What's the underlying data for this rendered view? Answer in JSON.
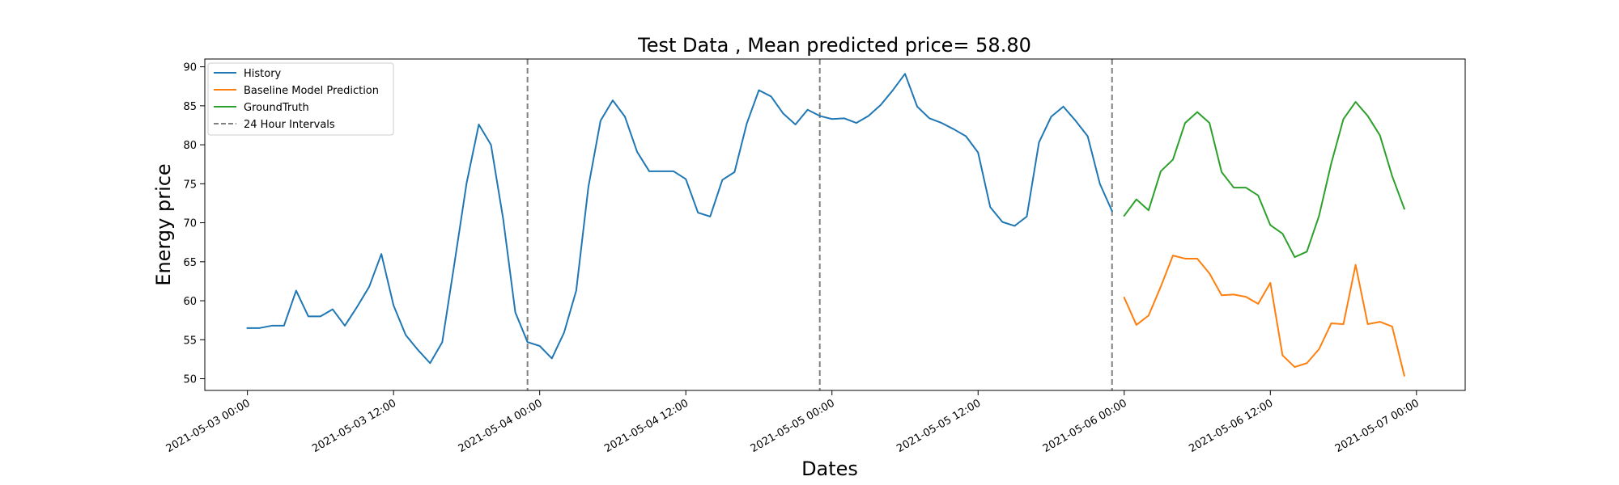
{
  "chart_data": {
    "type": "line",
    "title": "Test Data , Mean predicted price= 58.80",
    "xlabel": "Dates",
    "ylabel": "Energy price",
    "x_range": [
      "2021-05-02 20:30",
      "2021-05-07 04:00"
    ],
    "ylim": [
      48.5,
      91.0
    ],
    "yticks": [
      50,
      55,
      60,
      65,
      70,
      75,
      80,
      85,
      90
    ],
    "xticks": [
      {
        "value": "2021-05-03 00:00",
        "label": "2021-05-03 00:00"
      },
      {
        "value": "2021-05-03 12:00",
        "label": "2021-05-03 12:00"
      },
      {
        "value": "2021-05-04 00:00",
        "label": "2021-05-04 00:00"
      },
      {
        "value": "2021-05-04 12:00",
        "label": "2021-05-04 12:00"
      },
      {
        "value": "2021-05-05 00:00",
        "label": "2021-05-05 00:00"
      },
      {
        "value": "2021-05-05 12:00",
        "label": "2021-05-05 12:00"
      },
      {
        "value": "2021-05-06 00:00",
        "label": "2021-05-06 00:00"
      },
      {
        "value": "2021-05-06 12:00",
        "label": "2021-05-06 12:00"
      },
      {
        "value": "2021-05-07 00:00",
        "label": "2021-05-07 00:00"
      }
    ],
    "grid": false,
    "legend_position": "upper-left",
    "series": [
      {
        "name": "History",
        "color": "#1f77b4",
        "x": [
          "2021-05-03 00:00",
          "2021-05-03 01:00",
          "2021-05-03 02:00",
          "2021-05-03 03:00",
          "2021-05-03 04:00",
          "2021-05-03 05:00",
          "2021-05-03 06:00",
          "2021-05-03 07:00",
          "2021-05-03 08:00",
          "2021-05-03 09:00",
          "2021-05-03 10:00",
          "2021-05-03 11:00",
          "2021-05-03 12:00",
          "2021-05-03 13:00",
          "2021-05-03 14:00",
          "2021-05-03 15:00",
          "2021-05-03 16:00",
          "2021-05-03 17:00",
          "2021-05-03 18:00",
          "2021-05-03 19:00",
          "2021-05-03 20:00",
          "2021-05-03 21:00",
          "2021-05-03 22:00",
          "2021-05-03 23:00",
          "2021-05-04 00:00",
          "2021-05-04 01:00",
          "2021-05-04 02:00",
          "2021-05-04 03:00",
          "2021-05-04 04:00",
          "2021-05-04 05:00",
          "2021-05-04 06:00",
          "2021-05-04 07:00",
          "2021-05-04 08:00",
          "2021-05-04 09:00",
          "2021-05-04 10:00",
          "2021-05-04 11:00",
          "2021-05-04 12:00",
          "2021-05-04 13:00",
          "2021-05-04 14:00",
          "2021-05-04 15:00",
          "2021-05-04 16:00",
          "2021-05-04 17:00",
          "2021-05-04 18:00",
          "2021-05-04 19:00",
          "2021-05-04 20:00",
          "2021-05-04 21:00",
          "2021-05-04 22:00",
          "2021-05-04 23:00",
          "2021-05-05 00:00",
          "2021-05-05 01:00",
          "2021-05-05 02:00",
          "2021-05-05 03:00",
          "2021-05-05 04:00",
          "2021-05-05 05:00",
          "2021-05-05 06:00",
          "2021-05-05 07:00",
          "2021-05-05 08:00",
          "2021-05-05 09:00",
          "2021-05-05 10:00",
          "2021-05-05 11:00",
          "2021-05-05 12:00",
          "2021-05-05 13:00",
          "2021-05-05 14:00",
          "2021-05-05 15:00",
          "2021-05-05 16:00",
          "2021-05-05 17:00",
          "2021-05-05 18:00",
          "2021-05-05 19:00",
          "2021-05-05 20:00",
          "2021-05-05 21:00",
          "2021-05-05 22:00",
          "2021-05-05 23:00"
        ],
        "values": [
          56.5,
          56.5,
          56.8,
          56.8,
          61.3,
          58.0,
          58.0,
          58.9,
          56.8,
          59.2,
          61.8,
          66.0,
          59.4,
          55.6,
          53.7,
          52.0,
          54.7,
          64.8,
          75.1,
          82.6,
          80.0,
          70.5,
          58.5,
          54.7,
          54.2,
          52.6,
          55.9,
          61.3,
          74.6,
          83.1,
          85.7,
          83.6,
          79.1,
          76.6,
          76.6,
          76.6,
          75.6,
          71.3,
          70.8,
          75.5,
          76.5,
          82.7,
          87.0,
          86.2,
          84.0,
          82.6,
          84.5,
          83.7,
          83.3,
          83.4,
          82.8,
          83.7,
          85.1,
          87.0,
          89.1,
          84.9,
          83.4,
          82.8,
          82.0,
          81.1,
          79.0,
          72.0,
          70.1,
          69.6,
          70.8,
          80.3,
          83.6,
          84.9,
          83.1,
          81.1,
          75.0,
          71.5
        ]
      },
      {
        "name": "Baseline Model Prediction",
        "color": "#ff7f0e",
        "x": [
          "2021-05-06 00:00",
          "2021-05-06 01:00",
          "2021-05-06 02:00",
          "2021-05-06 03:00",
          "2021-05-06 04:00",
          "2021-05-06 05:00",
          "2021-05-06 06:00",
          "2021-05-06 07:00",
          "2021-05-06 08:00",
          "2021-05-06 09:00",
          "2021-05-06 10:00",
          "2021-05-06 11:00",
          "2021-05-06 12:00",
          "2021-05-06 13:00",
          "2021-05-06 14:00",
          "2021-05-06 15:00",
          "2021-05-06 16:00",
          "2021-05-06 17:00",
          "2021-05-06 18:00",
          "2021-05-06 19:00",
          "2021-05-06 20:00",
          "2021-05-06 21:00",
          "2021-05-06 22:00",
          "2021-05-06 23:00"
        ],
        "values": [
          60.4,
          56.9,
          58.1,
          61.8,
          65.8,
          65.4,
          65.4,
          63.5,
          60.7,
          60.8,
          60.5,
          59.6,
          62.3,
          53.0,
          51.5,
          52.0,
          53.8,
          57.1,
          57.0,
          64.6,
          57.0,
          57.3,
          56.7,
          50.4
        ]
      },
      {
        "name": "GroundTruth",
        "color": "#2ca02c",
        "x": [
          "2021-05-06 00:00",
          "2021-05-06 01:00",
          "2021-05-06 02:00",
          "2021-05-06 03:00",
          "2021-05-06 04:00",
          "2021-05-06 05:00",
          "2021-05-06 06:00",
          "2021-05-06 07:00",
          "2021-05-06 08:00",
          "2021-05-06 09:00",
          "2021-05-06 10:00",
          "2021-05-06 11:00",
          "2021-05-06 12:00",
          "2021-05-06 13:00",
          "2021-05-06 14:00",
          "2021-05-06 15:00",
          "2021-05-06 16:00",
          "2021-05-06 17:00",
          "2021-05-06 18:00",
          "2021-05-06 19:00",
          "2021-05-06 20:00",
          "2021-05-06 21:00",
          "2021-05-06 22:00",
          "2021-05-06 23:00"
        ],
        "values": [
          70.9,
          73.0,
          71.6,
          76.6,
          78.1,
          82.8,
          84.2,
          82.8,
          76.5,
          74.5,
          74.5,
          73.5,
          69.7,
          68.6,
          65.6,
          66.3,
          70.9,
          77.6,
          83.3,
          85.5,
          83.7,
          81.2,
          76.0,
          71.8
        ]
      }
    ],
    "vlines": {
      "name": "24 Hour Intervals",
      "color": "#808080",
      "style": "dashed",
      "x": [
        "2021-05-03 23:00",
        "2021-05-04 23:00",
        "2021-05-05 23:00"
      ]
    }
  }
}
